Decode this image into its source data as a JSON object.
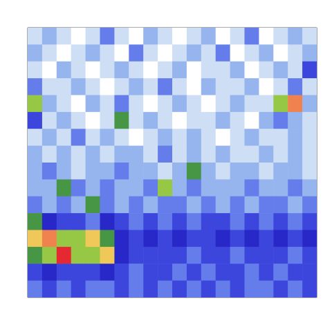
{
  "chart_data": {
    "type": "heatmap",
    "xlim": [
      0,
      20
    ],
    "ylim": [
      0,
      16
    ],
    "zlim": [
      0,
      10
    ],
    "tick_labels": false,
    "grid": false,
    "cells": [
      [
        1,
        2,
        1,
        0,
        1,
        3,
        1,
        0,
        2,
        1,
        0,
        1,
        2,
        0,
        1,
        3,
        0,
        1,
        2,
        1
      ],
      [
        2,
        1,
        0,
        1,
        2,
        1,
        0,
        3,
        1,
        0,
        1,
        2,
        1,
        3,
        0,
        1,
        2,
        0,
        1,
        2
      ],
      [
        1,
        0,
        2,
        1,
        0,
        1,
        2,
        1,
        0,
        1,
        2,
        0,
        1,
        1,
        2,
        0,
        1,
        2,
        1,
        4
      ],
      [
        3,
        1,
        1,
        2,
        1,
        0,
        1,
        2,
        1,
        3,
        1,
        0,
        2,
        1,
        1,
        2,
        0,
        1,
        3,
        1
      ],
      [
        7,
        2,
        1,
        0,
        2,
        1,
        3,
        1,
        0,
        1,
        2,
        1,
        0,
        1,
        2,
        1,
        1,
        7,
        9,
        2
      ],
      [
        4,
        1,
        2,
        1,
        0,
        1,
        6,
        1,
        2,
        1,
        0,
        1,
        1,
        2,
        1,
        0,
        2,
        3,
        2,
        1
      ],
      [
        1,
        2,
        1,
        3,
        1,
        2,
        1,
        0,
        1,
        2,
        1,
        2,
        1,
        0,
        1,
        2,
        1,
        1,
        2,
        1
      ],
      [
        2,
        1,
        2,
        1,
        2,
        1,
        2,
        2,
        1,
        3,
        1,
        2,
        1,
        2,
        1,
        1,
        2,
        1,
        2,
        1
      ],
      [
        2,
        3,
        2,
        1,
        2,
        2,
        3,
        2,
        2,
        1,
        2,
        6,
        2,
        1,
        2,
        2,
        1,
        2,
        2,
        1
      ],
      [
        2,
        2,
        6,
        3,
        2,
        3,
        2,
        2,
        3,
        7,
        2,
        3,
        2,
        2,
        2,
        3,
        2,
        2,
        3,
        2
      ],
      [
        3,
        2,
        3,
        2,
        6,
        3,
        2,
        3,
        2,
        3,
        3,
        2,
        3,
        2,
        3,
        2,
        3,
        3,
        2,
        3
      ],
      [
        6,
        5,
        4,
        4,
        3,
        5,
        4,
        3,
        4,
        3,
        4,
        3,
        4,
        4,
        3,
        4,
        3,
        4,
        3,
        4
      ],
      [
        8,
        9,
        7,
        7,
        8,
        6,
        5,
        4,
        5,
        4,
        5,
        4,
        4,
        5,
        4,
        5,
        4,
        5,
        4,
        5
      ],
      [
        6,
        7,
        10,
        7,
        7,
        8,
        5,
        4,
        4,
        4,
        4,
        3,
        4,
        4,
        3,
        4,
        4,
        4,
        3,
        4
      ],
      [
        4,
        5,
        4,
        4,
        4,
        5,
        4,
        3,
        4,
        4,
        3,
        4,
        3,
        4,
        4,
        3,
        4,
        3,
        4,
        4
      ],
      [
        3,
        4,
        3,
        4,
        3,
        3,
        4,
        3,
        4,
        3,
        4,
        3,
        4,
        3,
        4,
        3,
        3,
        4,
        3,
        4
      ]
    ]
  }
}
